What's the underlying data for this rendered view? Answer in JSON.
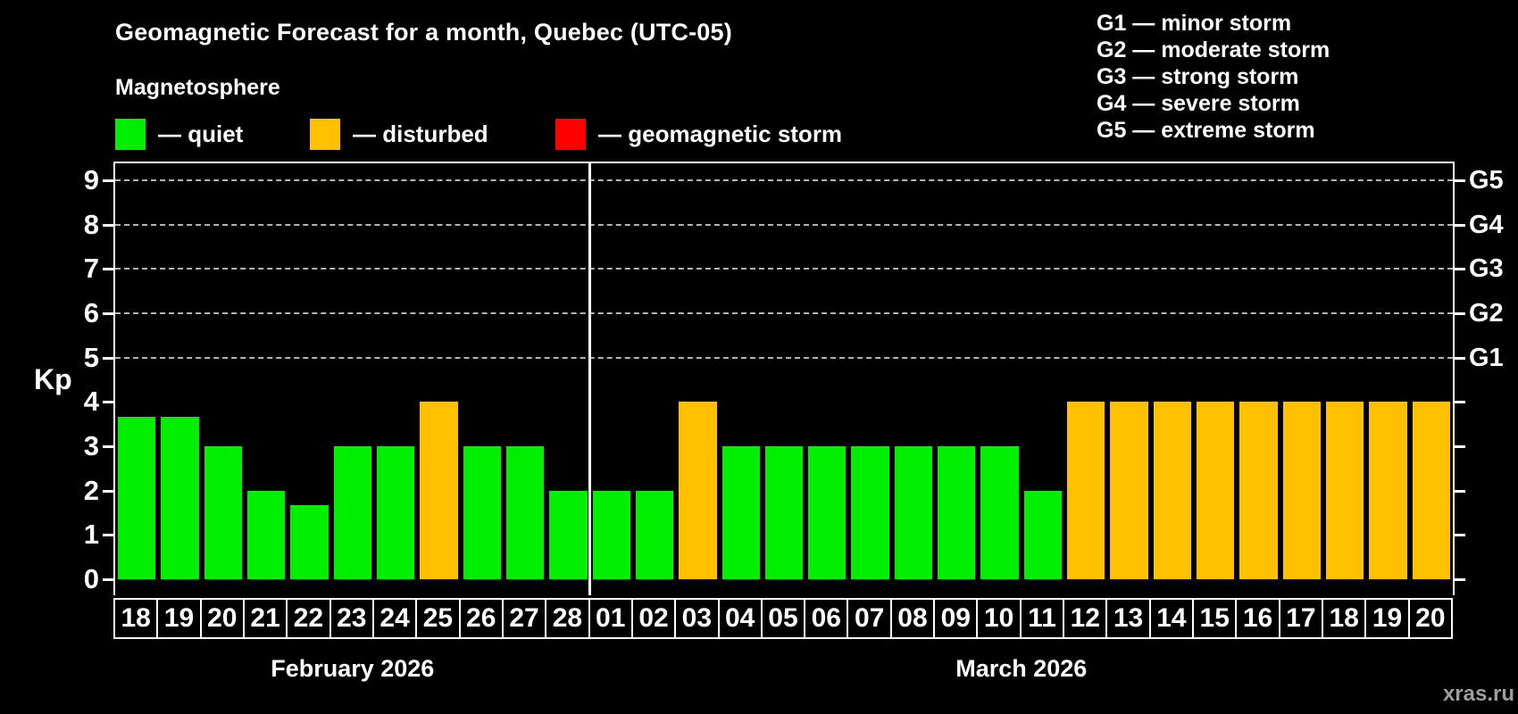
{
  "header": {
    "title": "Geomagnetic Forecast for a month, Quebec (UTC-05)",
    "subtitle": "Magnetosphere"
  },
  "legend": {
    "items": [
      {
        "key": "quiet",
        "label": "— quiet",
        "color": "#00ee00"
      },
      {
        "key": "disturbed",
        "label": "— disturbed",
        "color": "#ffc000"
      },
      {
        "key": "storm",
        "label": "— geomagnetic storm",
        "color": "#ff0000"
      }
    ]
  },
  "storm_scale_legend": [
    "G1 — minor storm",
    "G2 — moderate storm",
    "G3 — strong storm",
    "G4 — severe storm",
    "G5 — extreme storm"
  ],
  "watermark": "xras.ru",
  "chart_data": {
    "type": "bar",
    "title": "Geomagnetic Forecast for a month, Quebec (UTC-05)",
    "xlabel": "",
    "ylabel": "Kp",
    "ylim": [
      0,
      9
    ],
    "y_ticks": [
      0,
      1,
      2,
      3,
      4,
      5,
      6,
      7,
      8,
      9
    ],
    "gridlines_at": [
      5,
      6,
      7,
      8,
      9
    ],
    "grid": "dashed horizontal lines at storm levels G1-G5 only",
    "legend_position": "top-left",
    "right_axis_labels": [
      {
        "value": 5,
        "label": "G1"
      },
      {
        "value": 6,
        "label": "G2"
      },
      {
        "value": 7,
        "label": "G3"
      },
      {
        "value": 8,
        "label": "G4"
      },
      {
        "value": 9,
        "label": "G5"
      }
    ],
    "bar_colors": {
      "quiet": "#00ee00",
      "disturbed": "#ffc000",
      "storm": "#ff0000"
    },
    "month_groups": [
      {
        "label": "February 2026",
        "days": 11
      },
      {
        "label": "March 2026",
        "days": 20
      }
    ],
    "points": [
      {
        "day": "18",
        "kp": 3.67,
        "status": "quiet"
      },
      {
        "day": "19",
        "kp": 3.67,
        "status": "quiet"
      },
      {
        "day": "20",
        "kp": 3,
        "status": "quiet"
      },
      {
        "day": "21",
        "kp": 2,
        "status": "quiet"
      },
      {
        "day": "22",
        "kp": 1.67,
        "status": "quiet"
      },
      {
        "day": "23",
        "kp": 3,
        "status": "quiet"
      },
      {
        "day": "24",
        "kp": 3,
        "status": "quiet"
      },
      {
        "day": "25",
        "kp": 4,
        "status": "disturbed"
      },
      {
        "day": "26",
        "kp": 3,
        "status": "quiet"
      },
      {
        "day": "27",
        "kp": 3,
        "status": "quiet"
      },
      {
        "day": "28",
        "kp": 2,
        "status": "quiet"
      },
      {
        "day": "01",
        "kp": 2,
        "status": "quiet"
      },
      {
        "day": "02",
        "kp": 2,
        "status": "quiet"
      },
      {
        "day": "03",
        "kp": 4,
        "status": "disturbed"
      },
      {
        "day": "04",
        "kp": 3,
        "status": "quiet"
      },
      {
        "day": "05",
        "kp": 3,
        "status": "quiet"
      },
      {
        "day": "06",
        "kp": 3,
        "status": "quiet"
      },
      {
        "day": "07",
        "kp": 3,
        "status": "quiet"
      },
      {
        "day": "08",
        "kp": 3,
        "status": "quiet"
      },
      {
        "day": "09",
        "kp": 3,
        "status": "quiet"
      },
      {
        "day": "10",
        "kp": 3,
        "status": "quiet"
      },
      {
        "day": "11",
        "kp": 2,
        "status": "quiet"
      },
      {
        "day": "12",
        "kp": 4,
        "status": "disturbed"
      },
      {
        "day": "13",
        "kp": 4,
        "status": "disturbed"
      },
      {
        "day": "14",
        "kp": 4,
        "status": "disturbed"
      },
      {
        "day": "15",
        "kp": 4,
        "status": "disturbed"
      },
      {
        "day": "16",
        "kp": 4,
        "status": "disturbed"
      },
      {
        "day": "17",
        "kp": 4,
        "status": "disturbed"
      },
      {
        "day": "18",
        "kp": 4,
        "status": "disturbed"
      },
      {
        "day": "19",
        "kp": 4,
        "status": "disturbed"
      },
      {
        "day": "20",
        "kp": 4,
        "status": "disturbed"
      }
    ]
  }
}
